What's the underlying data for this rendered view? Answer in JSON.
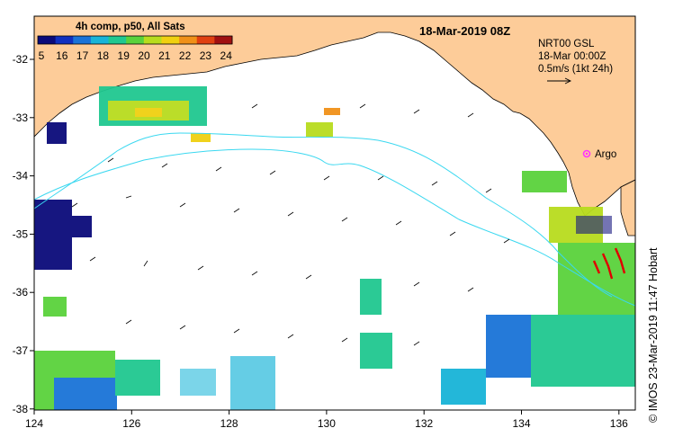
{
  "title": "18-Mar-2019 08Z",
  "colorbar": {
    "title": "4h comp, p50, All Sats",
    "ticks": [
      "5",
      "16",
      "17",
      "18",
      "19",
      "20",
      "21",
      "22",
      "23",
      "24"
    ],
    "colors": [
      "#0a0a7a",
      "#1030c0",
      "#1a73d8",
      "#18b4d8",
      "#20c890",
      "#5ad23c",
      "#b8dc1e",
      "#f0d010",
      "#f09018",
      "#e04010",
      "#a01010"
    ]
  },
  "legend": {
    "line1": "NRT00 GSL",
    "line2": "18-Mar 00:00Z",
    "line3": "0.5m/s (1kt 24h)"
  },
  "argo": {
    "label": "Argo",
    "color": "#ff33ff"
  },
  "credit": "©  IMOS 23-Mar-2019 11:47 Hobart",
  "x_axis": {
    "ticks": [
      "124",
      "126",
      "128",
      "130",
      "132",
      "134",
      "136"
    ]
  },
  "y_axis": {
    "ticks": [
      "-32",
      "-33",
      "-34",
      "-35",
      "-36",
      "-37",
      "-38"
    ]
  },
  "colors": {
    "land": "#fdcc99",
    "contour": "#3ad8f0",
    "current_arrow": "#000000",
    "highlight": "#e00000"
  }
}
